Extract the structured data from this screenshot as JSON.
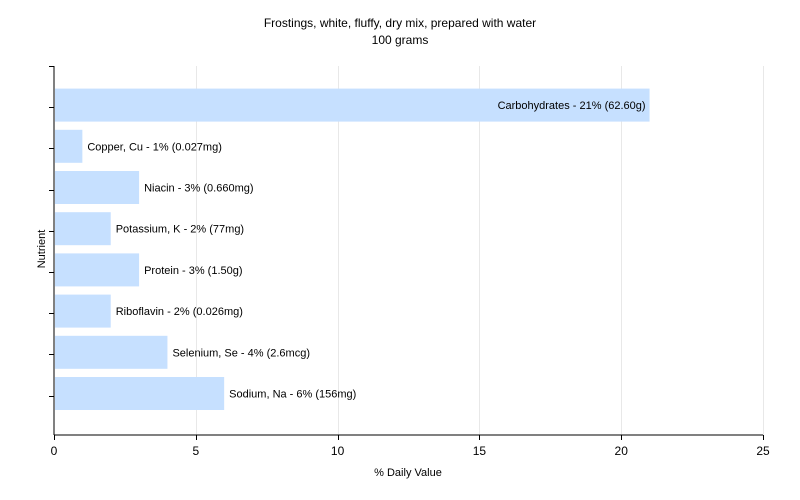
{
  "chart_data": {
    "type": "bar",
    "orientation": "horizontal",
    "title": "Frostings, white, fluffy, dry mix, prepared with water",
    "subtitle": "100 grams",
    "xlabel": "% Daily Value",
    "ylabel": "Nutrient",
    "xlim": [
      0,
      25
    ],
    "xticks": [
      0,
      5,
      10,
      15,
      20,
      25
    ],
    "grid": true,
    "bar_color": "#c6e0ff",
    "categories": [
      "Carbohydrates",
      "Copper, Cu",
      "Niacin",
      "Potassium, K",
      "Protein",
      "Riboflavin",
      "Selenium, Se",
      "Sodium, Na"
    ],
    "values": [
      21,
      1,
      3,
      2,
      3,
      2,
      4,
      6
    ],
    "labels": [
      "Carbohydrates - 21% (62.60g)",
      "Copper, Cu - 1% (0.027mg)",
      "Niacin - 3% (0.660mg)",
      "Potassium, K - 2% (77mg)",
      "Protein - 3% (1.50g)",
      "Riboflavin - 2% (0.026mg)",
      "Selenium, Se - 4% (2.6mcg)",
      "Sodium, Na - 6% (156mg)"
    ]
  }
}
